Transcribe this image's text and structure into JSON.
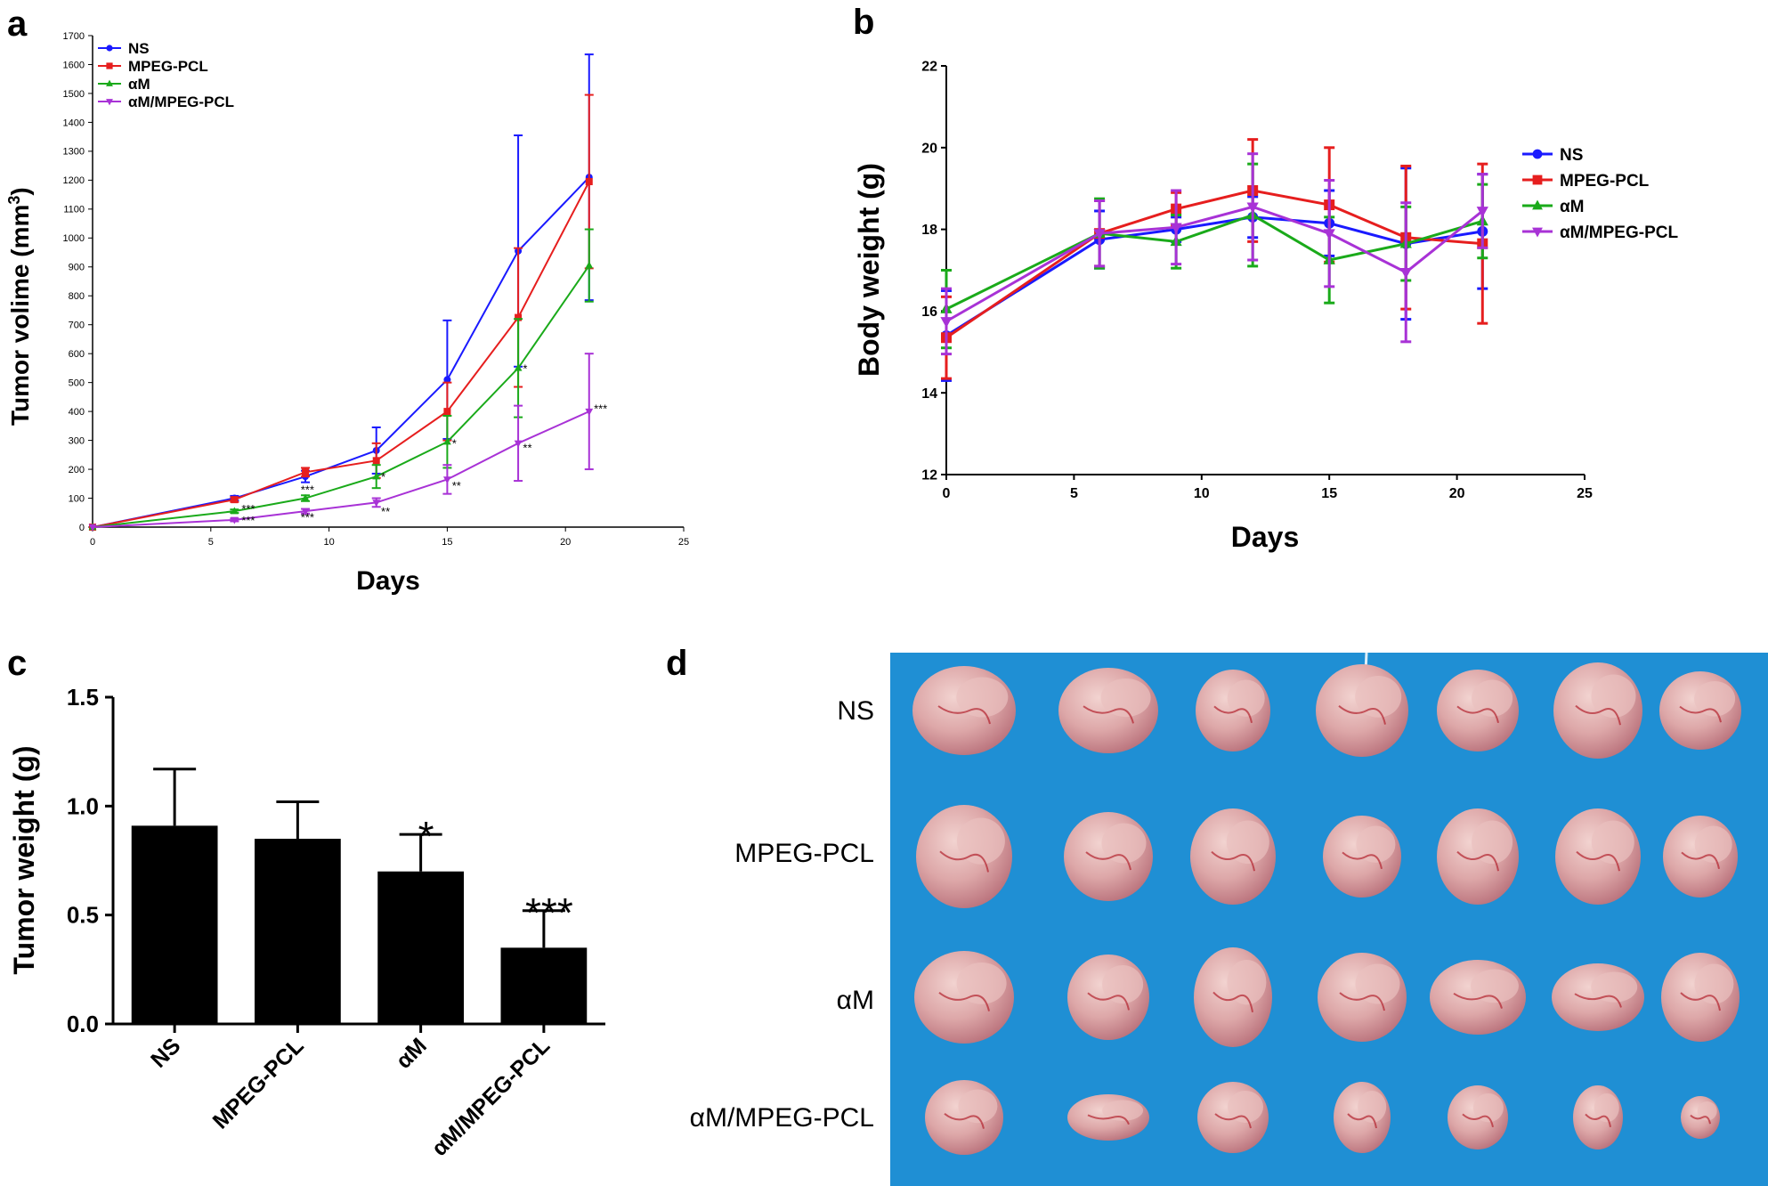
{
  "panel_labels": {
    "a": "a",
    "b": "b",
    "c": "c",
    "d": "d"
  },
  "colors": {
    "NS": "#1a1aff",
    "MPEG-PCL": "#e61e1e",
    "aM": "#1aaa1a",
    "aM/MPEG-PCL": "#a832d6",
    "board": "#1f8fd4",
    "tumor": "#d9a6a8"
  },
  "chart_data": [
    {
      "id": "a",
      "type": "line",
      "title": "",
      "xlabel": "Days",
      "ylabel": "Tumor volime (mm",
      "ylabel_sup": "3",
      "ylabel_close": ")",
      "xlim": [
        0,
        25
      ],
      "ylim": [
        0,
        1700
      ],
      "xticks": [
        "0",
        "5",
        "10",
        "15",
        "20",
        "25"
      ],
      "yticks": [
        "0",
        "100",
        "200",
        "300",
        "400",
        "500",
        "600",
        "700",
        "800",
        "900",
        "1000",
        "1100",
        "1200",
        "1300",
        "1400",
        "1500",
        "1600",
        "1700"
      ],
      "legend": [
        "NS",
        "MPEG-PCL",
        "αM",
        "αM/MPEG-PCL"
      ],
      "legend_position": "top-left",
      "x": [
        0,
        6,
        9,
        12,
        15,
        18,
        21
      ],
      "series": [
        {
          "name": "NS",
          "values": [
            0,
            100,
            175,
            265,
            510,
            955,
            1210
          ],
          "err": [
            0,
            8,
            20,
            80,
            205,
            400,
            425
          ]
        },
        {
          "name": "MPEG-PCL",
          "values": [
            0,
            95,
            190,
            230,
            400,
            725,
            1195
          ],
          "err": [
            0,
            8,
            15,
            60,
            100,
            240,
            300
          ]
        },
        {
          "name": "αM",
          "values": [
            0,
            55,
            100,
            175,
            295,
            550,
            905
          ],
          "err": [
            0,
            6,
            10,
            40,
            90,
            170,
            125
          ]
        },
        {
          "name": "αM/MPEG-PCL",
          "values": [
            0,
            25,
            55,
            85,
            165,
            290,
            400
          ],
          "err": [
            0,
            5,
            8,
            15,
            50,
            130,
            200
          ]
        }
      ],
      "annotations": [
        {
          "text": "***",
          "x": 6.3,
          "y": 50,
          "series": 2
        },
        {
          "text": "***",
          "x": 6.3,
          "y": 10,
          "series": 3
        },
        {
          "text": "***",
          "x": 8.8,
          "y": 115,
          "series": 2
        },
        {
          "text": "***",
          "x": 8.8,
          "y": 20,
          "series": 3
        },
        {
          "text": "*",
          "x": 12.2,
          "y": 160,
          "series": 2
        },
        {
          "text": "**",
          "x": 12.2,
          "y": 40,
          "series": 3
        },
        {
          "text": "*",
          "x": 15.2,
          "y": 275,
          "series": 2
        },
        {
          "text": "**",
          "x": 15.2,
          "y": 130,
          "series": 3
        },
        {
          "text": "*",
          "x": 18.2,
          "y": 535,
          "series": 2
        },
        {
          "text": "**",
          "x": 18.2,
          "y": 260,
          "series": 3
        },
        {
          "text": "***",
          "x": 21.2,
          "y": 395,
          "series": 3
        }
      ]
    },
    {
      "id": "b",
      "type": "line",
      "title": "",
      "xlabel": "Days",
      "ylabel": "Body weight (g)",
      "xlim": [
        0,
        25
      ],
      "ylim": [
        12,
        22
      ],
      "xticks": [
        "0",
        "5",
        "10",
        "15",
        "20",
        "25"
      ],
      "yticks": [
        "12",
        "14",
        "16",
        "18",
        "20",
        "22"
      ],
      "legend": [
        "NS",
        "MPEG-PCL",
        "αM",
        "αM/MPEG-PCL"
      ],
      "legend_position": "right",
      "x": [
        0,
        6,
        9,
        12,
        15,
        18,
        21
      ],
      "series": [
        {
          "name": "NS",
          "values": [
            15.4,
            17.75,
            18.0,
            18.3,
            18.15,
            17.65,
            17.95
          ],
          "err": [
            1.1,
            0.7,
            0.3,
            0.5,
            0.8,
            1.85,
            1.4
          ]
        },
        {
          "name": "MPEG-PCL",
          "values": [
            15.35,
            17.9,
            18.5,
            18.95,
            18.6,
            17.8,
            17.65
          ],
          "err": [
            1.0,
            0.8,
            0.4,
            1.25,
            1.4,
            1.75,
            1.95
          ]
        },
        {
          "name": "αM",
          "values": [
            16.05,
            17.9,
            17.7,
            18.35,
            17.25,
            17.65,
            18.2
          ],
          "err": [
            0.95,
            0.85,
            0.65,
            1.25,
            1.05,
            0.9,
            0.9
          ]
        },
        {
          "name": "αM/MPEG-PCL",
          "values": [
            15.75,
            17.9,
            18.05,
            18.55,
            17.9,
            16.95,
            18.45
          ],
          "err": [
            0.8,
            0.8,
            0.9,
            1.3,
            1.3,
            1.7,
            0.9
          ]
        }
      ]
    },
    {
      "id": "c",
      "type": "bar",
      "title": "",
      "xlabel": "",
      "ylabel": "Tumor weight (g)",
      "ylim": [
        0,
        1.5
      ],
      "yticks": [
        "0.0",
        "0.5",
        "1.0",
        "1.5"
      ],
      "categories": [
        "NS",
        "MPEG-PCL",
        "αM",
        "αM/MPEG-PCL"
      ],
      "values": [
        0.91,
        0.85,
        0.7,
        0.35
      ],
      "err": [
        0.26,
        0.17,
        0.17,
        0.17
      ],
      "significance": [
        "",
        "",
        "*",
        "***"
      ]
    }
  ],
  "panel_d": {
    "rows": [
      "NS",
      "MPEG-PCL",
      "αM",
      "αM/MPEG-PCL"
    ],
    "tumor_counts": [
      7,
      7,
      7,
      7
    ]
  }
}
